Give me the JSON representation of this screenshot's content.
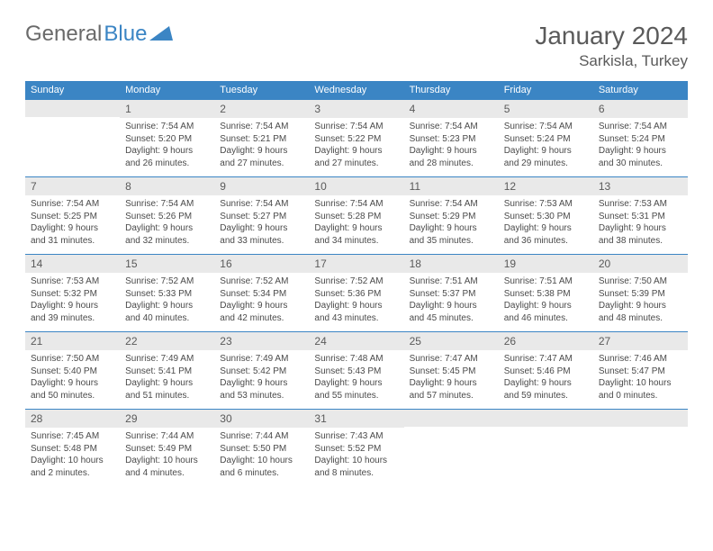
{
  "brand": {
    "part1": "General",
    "part2": "Blue"
  },
  "title": "January 2024",
  "location": "Sarkisla, Turkey",
  "colors": {
    "header_bg": "#3b85c4",
    "daynum_bg": "#e9e9e9",
    "text_gray": "#5a5a5a",
    "body_text": "#4a4a4a",
    "row_border": "#3b85c4"
  },
  "days_of_week": [
    "Sunday",
    "Monday",
    "Tuesday",
    "Wednesday",
    "Thursday",
    "Friday",
    "Saturday"
  ],
  "weeks": [
    [
      null,
      {
        "n": "1",
        "sr": "Sunrise: 7:54 AM",
        "ss": "Sunset: 5:20 PM",
        "dl": "Daylight: 9 hours and 26 minutes."
      },
      {
        "n": "2",
        "sr": "Sunrise: 7:54 AM",
        "ss": "Sunset: 5:21 PM",
        "dl": "Daylight: 9 hours and 27 minutes."
      },
      {
        "n": "3",
        "sr": "Sunrise: 7:54 AM",
        "ss": "Sunset: 5:22 PM",
        "dl": "Daylight: 9 hours and 27 minutes."
      },
      {
        "n": "4",
        "sr": "Sunrise: 7:54 AM",
        "ss": "Sunset: 5:23 PM",
        "dl": "Daylight: 9 hours and 28 minutes."
      },
      {
        "n": "5",
        "sr": "Sunrise: 7:54 AM",
        "ss": "Sunset: 5:24 PM",
        "dl": "Daylight: 9 hours and 29 minutes."
      },
      {
        "n": "6",
        "sr": "Sunrise: 7:54 AM",
        "ss": "Sunset: 5:24 PM",
        "dl": "Daylight: 9 hours and 30 minutes."
      }
    ],
    [
      {
        "n": "7",
        "sr": "Sunrise: 7:54 AM",
        "ss": "Sunset: 5:25 PM",
        "dl": "Daylight: 9 hours and 31 minutes."
      },
      {
        "n": "8",
        "sr": "Sunrise: 7:54 AM",
        "ss": "Sunset: 5:26 PM",
        "dl": "Daylight: 9 hours and 32 minutes."
      },
      {
        "n": "9",
        "sr": "Sunrise: 7:54 AM",
        "ss": "Sunset: 5:27 PM",
        "dl": "Daylight: 9 hours and 33 minutes."
      },
      {
        "n": "10",
        "sr": "Sunrise: 7:54 AM",
        "ss": "Sunset: 5:28 PM",
        "dl": "Daylight: 9 hours and 34 minutes."
      },
      {
        "n": "11",
        "sr": "Sunrise: 7:54 AM",
        "ss": "Sunset: 5:29 PM",
        "dl": "Daylight: 9 hours and 35 minutes."
      },
      {
        "n": "12",
        "sr": "Sunrise: 7:53 AM",
        "ss": "Sunset: 5:30 PM",
        "dl": "Daylight: 9 hours and 36 minutes."
      },
      {
        "n": "13",
        "sr": "Sunrise: 7:53 AM",
        "ss": "Sunset: 5:31 PM",
        "dl": "Daylight: 9 hours and 38 minutes."
      }
    ],
    [
      {
        "n": "14",
        "sr": "Sunrise: 7:53 AM",
        "ss": "Sunset: 5:32 PM",
        "dl": "Daylight: 9 hours and 39 minutes."
      },
      {
        "n": "15",
        "sr": "Sunrise: 7:52 AM",
        "ss": "Sunset: 5:33 PM",
        "dl": "Daylight: 9 hours and 40 minutes."
      },
      {
        "n": "16",
        "sr": "Sunrise: 7:52 AM",
        "ss": "Sunset: 5:34 PM",
        "dl": "Daylight: 9 hours and 42 minutes."
      },
      {
        "n": "17",
        "sr": "Sunrise: 7:52 AM",
        "ss": "Sunset: 5:36 PM",
        "dl": "Daylight: 9 hours and 43 minutes."
      },
      {
        "n": "18",
        "sr": "Sunrise: 7:51 AM",
        "ss": "Sunset: 5:37 PM",
        "dl": "Daylight: 9 hours and 45 minutes."
      },
      {
        "n": "19",
        "sr": "Sunrise: 7:51 AM",
        "ss": "Sunset: 5:38 PM",
        "dl": "Daylight: 9 hours and 46 minutes."
      },
      {
        "n": "20",
        "sr": "Sunrise: 7:50 AM",
        "ss": "Sunset: 5:39 PM",
        "dl": "Daylight: 9 hours and 48 minutes."
      }
    ],
    [
      {
        "n": "21",
        "sr": "Sunrise: 7:50 AM",
        "ss": "Sunset: 5:40 PM",
        "dl": "Daylight: 9 hours and 50 minutes."
      },
      {
        "n": "22",
        "sr": "Sunrise: 7:49 AM",
        "ss": "Sunset: 5:41 PM",
        "dl": "Daylight: 9 hours and 51 minutes."
      },
      {
        "n": "23",
        "sr": "Sunrise: 7:49 AM",
        "ss": "Sunset: 5:42 PM",
        "dl": "Daylight: 9 hours and 53 minutes."
      },
      {
        "n": "24",
        "sr": "Sunrise: 7:48 AM",
        "ss": "Sunset: 5:43 PM",
        "dl": "Daylight: 9 hours and 55 minutes."
      },
      {
        "n": "25",
        "sr": "Sunrise: 7:47 AM",
        "ss": "Sunset: 5:45 PM",
        "dl": "Daylight: 9 hours and 57 minutes."
      },
      {
        "n": "26",
        "sr": "Sunrise: 7:47 AM",
        "ss": "Sunset: 5:46 PM",
        "dl": "Daylight: 9 hours and 59 minutes."
      },
      {
        "n": "27",
        "sr": "Sunrise: 7:46 AM",
        "ss": "Sunset: 5:47 PM",
        "dl": "Daylight: 10 hours and 0 minutes."
      }
    ],
    [
      {
        "n": "28",
        "sr": "Sunrise: 7:45 AM",
        "ss": "Sunset: 5:48 PM",
        "dl": "Daylight: 10 hours and 2 minutes."
      },
      {
        "n": "29",
        "sr": "Sunrise: 7:44 AM",
        "ss": "Sunset: 5:49 PM",
        "dl": "Daylight: 10 hours and 4 minutes."
      },
      {
        "n": "30",
        "sr": "Sunrise: 7:44 AM",
        "ss": "Sunset: 5:50 PM",
        "dl": "Daylight: 10 hours and 6 minutes."
      },
      {
        "n": "31",
        "sr": "Sunrise: 7:43 AM",
        "ss": "Sunset: 5:52 PM",
        "dl": "Daylight: 10 hours and 8 minutes."
      },
      null,
      null,
      null
    ]
  ]
}
